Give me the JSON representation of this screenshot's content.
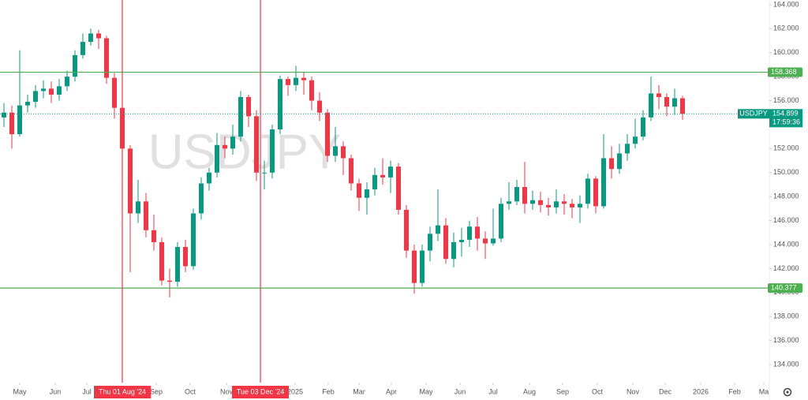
{
  "chart_data": {
    "type": "candlestick",
    "watermark": "USDJPY",
    "symbol": "USDJPY",
    "last_price": 154.899,
    "last_price_label": "154.899",
    "countdown": "17:59:36",
    "up_color": "#089981",
    "down_color": "#f23645",
    "level_color": "#4caf50",
    "marker_color": "#f23645",
    "categories": [
      null,
      null,
      null,
      null,
      null,
      null,
      null,
      null,
      null,
      null,
      null,
      null,
      null,
      null,
      null,
      null,
      null,
      null,
      null,
      null,
      null,
      null,
      null,
      null,
      null,
      null,
      null,
      null,
      null,
      null,
      null,
      null,
      null,
      null,
      null,
      null,
      null,
      null,
      null,
      null,
      null,
      null,
      null,
      null,
      null,
      null,
      null,
      null,
      null,
      null,
      null,
      null,
      null,
      null,
      null,
      null,
      null,
      null,
      null,
      null,
      null,
      null,
      null,
      null,
      null,
      null,
      null,
      null,
      null,
      null,
      null,
      null,
      null,
      null,
      null,
      null,
      null,
      null,
      null,
      null,
      null,
      null,
      null,
      null,
      null,
      null,
      null
    ],
    "open": [
      154.6,
      155.0,
      153.2,
      155.6,
      155.9,
      156.8,
      157.0,
      156.5,
      157.2,
      158.0,
      159.8,
      160.9,
      161.6,
      161.2,
      157.9,
      155.4,
      152.0,
      146.6,
      147.6,
      145.2,
      144.2,
      141.0,
      140.9,
      143.8,
      142.2,
      146.6,
      149.1,
      150.0,
      152.3,
      152.0,
      153.0,
      156.3,
      154.7,
      150.0,
      150.0,
      153.6,
      157.8,
      157.3,
      157.9,
      157.7,
      156.0,
      155.0,
      151.4,
      152.2,
      151.2,
      149.1,
      147.9,
      148.6,
      149.8,
      149.6,
      150.5,
      146.9,
      143.5,
      140.8,
      143.5,
      144.9,
      145.6,
      142.8,
      144.2,
      144.4,
      145.5,
      144.5,
      144.1,
      144.5,
      147.4,
      147.6,
      148.8,
      147.4,
      147.7,
      147.3,
      147.1,
      147.6,
      147.4,
      147.1,
      147.4,
      149.5,
      147.2,
      151.2,
      150.3,
      151.6,
      152.4,
      153.0,
      154.6,
      156.6,
      156.3,
      155.5,
      156.2
    ],
    "high": [
      155.8,
      155.6,
      160.2,
      156.5,
      157.3,
      157.7,
      157.6,
      157.8,
      158.5,
      160.2,
      161.6,
      162.0,
      161.9,
      161.4,
      158.3,
      155.8,
      152.3,
      149.4,
      148.3,
      146.5,
      144.6,
      142.0,
      144.2,
      144.4,
      147.0,
      149.6,
      150.4,
      153.3,
      153.0,
      154.0,
      156.8,
      156.5,
      155.2,
      151.0,
      154.0,
      158.1,
      158.0,
      158.9,
      158.4,
      158.0,
      156.7,
      155.3,
      153.8,
      152.6,
      151.5,
      149.5,
      149.2,
      150.4,
      151.2,
      151.0,
      150.8,
      147.3,
      144.0,
      144.0,
      145.5,
      148.6,
      146.2,
      145.0,
      145.4,
      146.0,
      146.3,
      145.1,
      147.0,
      147.9,
      149.2,
      149.4,
      150.9,
      148.5,
      148.4,
      147.9,
      148.6,
      148.2,
      147.8,
      148.1,
      149.9,
      149.7,
      153.2,
      152.2,
      152.4,
      153.2,
      154.5,
      155.2,
      158.0,
      157.3,
      156.6,
      157.0,
      156.4
    ],
    "low": [
      153.8,
      152.0,
      153.0,
      155.0,
      155.4,
      156.2,
      155.8,
      156.0,
      156.8,
      157.6,
      159.5,
      160.6,
      160.3,
      157.4,
      154.5,
      151.3,
      141.7,
      145.8,
      144.6,
      143.5,
      140.6,
      139.6,
      140.5,
      141.7,
      141.9,
      146.1,
      148.5,
      149.6,
      151.2,
      151.5,
      152.6,
      153.8,
      149.3,
      148.6,
      149.5,
      153.2,
      156.4,
      156.8,
      156.5,
      155.2,
      154.3,
      150.9,
      150.9,
      149.8,
      148.5,
      146.8,
      146.5,
      148.1,
      149.0,
      148.3,
      146.5,
      142.9,
      139.9,
      140.5,
      142.6,
      144.3,
      142.4,
      142.1,
      143.0,
      143.8,
      143.5,
      142.8,
      143.9,
      144.2,
      146.9,
      147.3,
      146.6,
      146.9,
      146.7,
      146.4,
      146.6,
      146.5,
      146.2,
      145.8,
      147.0,
      146.6,
      147.0,
      149.5,
      149.9,
      151.0,
      152.0,
      152.7,
      154.3,
      155.3,
      154.7,
      154.8,
      154.4
    ],
    "close": [
      155.0,
      153.2,
      155.6,
      155.9,
      156.8,
      157.0,
      156.5,
      157.2,
      158.0,
      159.8,
      160.9,
      161.6,
      161.2,
      157.9,
      155.4,
      152.0,
      146.6,
      147.6,
      145.2,
      144.2,
      141.0,
      140.9,
      143.8,
      142.2,
      146.6,
      149.1,
      150.0,
      152.3,
      152.0,
      153.0,
      156.3,
      154.7,
      150.0,
      150.0,
      153.6,
      157.8,
      157.3,
      157.9,
      157.7,
      156.0,
      155.0,
      151.4,
      152.2,
      151.2,
      149.1,
      147.9,
      148.6,
      149.8,
      149.6,
      150.5,
      146.9,
      143.5,
      140.8,
      143.5,
      144.9,
      145.6,
      142.8,
      144.2,
      144.4,
      145.5,
      144.5,
      144.1,
      144.5,
      147.4,
      147.6,
      148.8,
      147.4,
      147.7,
      147.3,
      147.1,
      147.6,
      147.4,
      147.1,
      147.4,
      149.5,
      147.2,
      151.2,
      150.3,
      151.6,
      152.4,
      153.0,
      154.6,
      156.6,
      156.3,
      155.5,
      156.2,
      154.9
    ],
    "xlim": [
      -0.5,
      97
    ],
    "ylim": [
      132.49,
      164.39
    ],
    "yticks": [
      {
        "value": 134,
        "label": "134.000"
      },
      {
        "value": 136,
        "label": "136.000"
      },
      {
        "value": 138,
        "label": "138.000"
      },
      {
        "value": 140,
        "label": "140.000"
      },
      {
        "value": 142,
        "label": "142.000"
      },
      {
        "value": 144,
        "label": "144.000"
      },
      {
        "value": 146,
        "label": "146.000"
      },
      {
        "value": 148,
        "label": "148.000"
      },
      {
        "value": 150,
        "label": "150.000"
      },
      {
        "value": 152,
        "label": "152.000"
      },
      {
        "value": 154,
        "label": "154.000"
      },
      {
        "value": 156,
        "label": "156.000"
      },
      {
        "value": 158,
        "label": "158.000"
      },
      {
        "value": 160,
        "label": "160.000"
      },
      {
        "value": 162,
        "label": "162.000"
      },
      {
        "value": 164,
        "label": "164.000"
      }
    ],
    "xticks": [
      {
        "value": 2.0,
        "label": "May"
      },
      {
        "value": 6.5,
        "label": "Jun"
      },
      {
        "value": 10.5,
        "label": "Jul"
      },
      {
        "value": 19.3,
        "label": "Sep"
      },
      {
        "value": 23.6,
        "label": "Oct"
      },
      {
        "value": 28.2,
        "label": "Nov"
      },
      {
        "value": 36.9,
        "label": "2025"
      },
      {
        "value": 41.1,
        "label": "Feb"
      },
      {
        "value": 45.0,
        "label": "Mar"
      },
      {
        "value": 49.1,
        "label": "Apr"
      },
      {
        "value": 53.5,
        "label": "May"
      },
      {
        "value": 57.8,
        "label": "Jun"
      },
      {
        "value": 62.0,
        "label": "Jul"
      },
      {
        "value": 66.6,
        "label": "Aug"
      },
      {
        "value": 70.8,
        "label": "Sep"
      },
      {
        "value": 75.2,
        "label": "Oct"
      },
      {
        "value": 79.7,
        "label": "Nov"
      },
      {
        "value": 83.8,
        "label": "Dec"
      },
      {
        "value": 88.3,
        "label": "2026"
      },
      {
        "value": 92.6,
        "label": "Feb"
      },
      {
        "value": 96.3,
        "label": "Ma"
      }
    ],
    "levels": [
      {
        "value": 158.368,
        "label": "158.368"
      },
      {
        "value": 140.377,
        "label": "140.377"
      }
    ],
    "markers": [
      {
        "x": 15.0,
        "label": "Thu 01 Aug '24"
      },
      {
        "x": 32.5,
        "label": "Tue 03 Dec '24"
      }
    ]
  }
}
